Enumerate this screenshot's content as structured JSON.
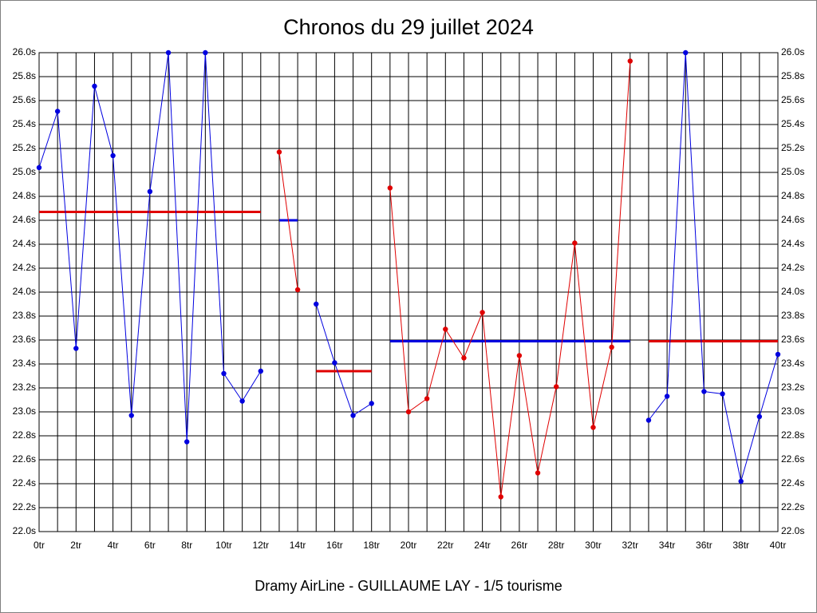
{
  "chart_data": {
    "type": "line",
    "title": "Chronos du 29 juillet 2024",
    "footer": "Dramy AirLine - GUILLAUME LAY - 1/5 tourisme",
    "x": [
      0,
      1,
      2,
      3,
      4,
      5,
      6,
      7,
      8,
      9,
      10,
      11,
      12,
      13,
      14,
      15,
      16,
      17,
      18,
      19,
      20,
      21,
      22,
      23,
      24,
      25,
      26,
      27,
      28,
      29,
      30,
      31,
      32,
      33,
      34,
      35,
      36,
      37,
      38,
      39,
      40
    ],
    "series": [
      {
        "color": "#0000e0",
        "values": [
          25.04,
          25.51,
          23.53,
          25.72,
          25.14,
          22.97,
          24.84,
          26.0,
          22.75,
          26.0,
          23.32,
          23.09,
          23.34,
          null,
          null,
          23.9,
          23.41,
          22.97,
          23.07,
          null,
          null,
          null,
          null,
          null,
          null,
          null,
          null,
          null,
          null,
          null,
          null,
          null,
          null,
          22.93,
          23.13,
          26.0,
          23.17,
          23.15,
          22.42,
          22.96,
          23.48
        ]
      },
      {
        "color": "#e00000",
        "values": [
          null,
          null,
          null,
          null,
          null,
          null,
          null,
          null,
          null,
          null,
          null,
          null,
          null,
          25.17,
          24.02,
          null,
          null,
          null,
          null,
          24.87,
          23.0,
          23.11,
          23.69,
          23.45,
          23.83,
          22.29,
          23.47,
          22.49,
          23.21,
          24.41,
          22.87,
          23.54,
          25.93,
          null,
          null,
          null,
          null,
          null,
          null,
          null,
          null
        ]
      }
    ],
    "averages": [
      {
        "x": [
          0,
          12
        ],
        "value": 24.67,
        "color": "#e00000"
      },
      {
        "x": [
          13,
          14
        ],
        "value": 24.6,
        "color": "#0000e0"
      },
      {
        "x": [
          15,
          18
        ],
        "value": 23.34,
        "color": "#e00000"
      },
      {
        "x": [
          19,
          32
        ],
        "value": 23.59,
        "color": "#0000e0"
      },
      {
        "x": [
          33,
          40
        ],
        "value": 23.59,
        "color": "#e00000"
      }
    ],
    "xlim": [
      0,
      40
    ],
    "ylim": [
      22.0,
      26.0
    ],
    "xticks": [
      {
        "value": 0,
        "label": "0tr"
      },
      {
        "value": 2,
        "label": "2tr"
      },
      {
        "value": 4,
        "label": "4tr"
      },
      {
        "value": 6,
        "label": "6tr"
      },
      {
        "value": 8,
        "label": "8tr"
      },
      {
        "value": 10,
        "label": "10tr"
      },
      {
        "value": 12,
        "label": "12tr"
      },
      {
        "value": 14,
        "label": "14tr"
      },
      {
        "value": 16,
        "label": "16tr"
      },
      {
        "value": 18,
        "label": "18tr"
      },
      {
        "value": 20,
        "label": "20tr"
      },
      {
        "value": 22,
        "label": "22tr"
      },
      {
        "value": 24,
        "label": "24tr"
      },
      {
        "value": 26,
        "label": "26tr"
      },
      {
        "value": 28,
        "label": "28tr"
      },
      {
        "value": 30,
        "label": "30tr"
      },
      {
        "value": 32,
        "label": "32tr"
      },
      {
        "value": 34,
        "label": "34tr"
      },
      {
        "value": 36,
        "label": "36tr"
      },
      {
        "value": 38,
        "label": "38tr"
      },
      {
        "value": 40,
        "label": "40tr"
      }
    ],
    "xgrid": [
      0,
      1,
      2,
      3,
      4,
      5,
      6,
      7,
      8,
      9,
      10,
      11,
      12,
      13,
      14,
      15,
      16,
      17,
      18,
      19,
      20,
      21,
      22,
      23,
      24,
      25,
      26,
      27,
      28,
      29,
      30,
      31,
      32,
      33,
      34,
      35,
      36,
      37,
      38,
      39,
      40
    ],
    "yticks": [
      {
        "value": 22.0,
        "label": "22.0s"
      },
      {
        "value": 22.2,
        "label": "22.2s"
      },
      {
        "value": 22.4,
        "label": "22.4s"
      },
      {
        "value": 22.6,
        "label": "22.6s"
      },
      {
        "value": 22.8,
        "label": "22.8s"
      },
      {
        "value": 23.0,
        "label": "23.0s"
      },
      {
        "value": 23.2,
        "label": "23.2s"
      },
      {
        "value": 23.4,
        "label": "23.4s"
      },
      {
        "value": 23.6,
        "label": "23.6s"
      },
      {
        "value": 23.8,
        "label": "23.8s"
      },
      {
        "value": 24.0,
        "label": "24.0s"
      },
      {
        "value": 24.2,
        "label": "24.2s"
      },
      {
        "value": 24.4,
        "label": "24.4s"
      },
      {
        "value": 24.6,
        "label": "24.6s"
      },
      {
        "value": 24.8,
        "label": "24.8s"
      },
      {
        "value": 25.0,
        "label": "25.0s"
      },
      {
        "value": 25.2,
        "label": "25.2s"
      },
      {
        "value": 25.4,
        "label": "25.4s"
      },
      {
        "value": 25.6,
        "label": "25.6s"
      },
      {
        "value": 25.8,
        "label": "25.8s"
      },
      {
        "value": 26.0,
        "label": "26.0s"
      }
    ],
    "grid": true
  }
}
